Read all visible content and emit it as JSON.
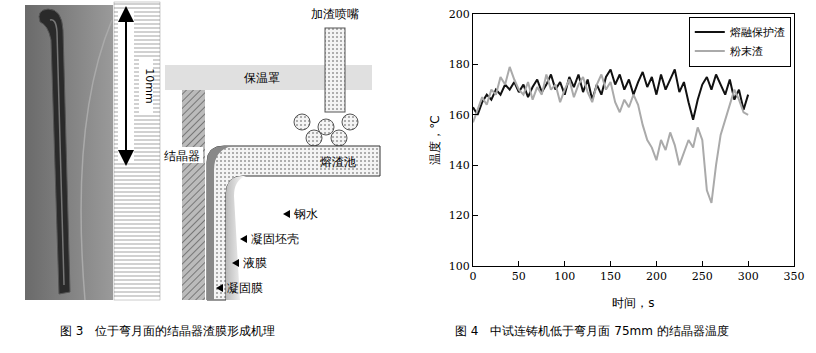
{
  "figure3": {
    "scale_label": "10mm",
    "labels": {
      "nozzle": "加渣喷嘴",
      "cover": "保温罩",
      "mold": "结晶器",
      "slag_pool": "熔渣池",
      "steel": "钢水",
      "shell": "凝固坯壳",
      "liquid_film": "液膜",
      "solid_film": "凝固膜"
    },
    "caption": "图 3　位于弯月面的结晶器渣膜形成机理"
  },
  "chart_data": {
    "type": "line",
    "caption": "图 4　中试连铸机低于弯月面 75mm 的结晶器温度",
    "x_label": "时间，s",
    "y_label": "温度，℃",
    "x": [
      0,
      5,
      10,
      15,
      20,
      25,
      30,
      35,
      40,
      45,
      50,
      55,
      60,
      65,
      70,
      75,
      80,
      85,
      90,
      95,
      100,
      105,
      110,
      115,
      120,
      125,
      130,
      135,
      140,
      145,
      150,
      155,
      160,
      165,
      170,
      175,
      180,
      185,
      190,
      195,
      200,
      205,
      210,
      215,
      220,
      225,
      230,
      235,
      240,
      245,
      250,
      255,
      260,
      265,
      270,
      275,
      280,
      285,
      290,
      295,
      300
    ],
    "series": [
      {
        "name": "熔融保护渣",
        "color": "#111111",
        "values": [
          163,
          160,
          165,
          168,
          166,
          170,
          168,
          172,
          170,
          173,
          169,
          172,
          167,
          171,
          174,
          169,
          172,
          176,
          170,
          173,
          168,
          175,
          171,
          176,
          169,
          174,
          166,
          172,
          168,
          175,
          178,
          172,
          176,
          170,
          174,
          168,
          173,
          177,
          171,
          175,
          168,
          176,
          170,
          174,
          178,
          169,
          173,
          165,
          158,
          166,
          172,
          175,
          170,
          176,
          172,
          168,
          174,
          166,
          170,
          162,
          168
        ]
      },
      {
        "name": "粉末渣",
        "color": "#aaaaaa",
        "values": [
          157,
          162,
          167,
          164,
          170,
          168,
          175,
          172,
          179,
          174,
          170,
          168,
          173,
          166,
          171,
          168,
          176,
          170,
          172,
          165,
          170,
          174,
          167,
          172,
          175,
          169,
          165,
          172,
          176,
          170,
          173,
          165,
          161,
          166,
          163,
          168,
          164,
          156,
          150,
          147,
          142,
          150,
          146,
          153,
          148,
          140,
          145,
          150,
          147,
          155,
          150,
          130,
          125,
          140,
          152,
          158,
          163,
          170,
          166,
          161,
          160
        ]
      }
    ],
    "xlim": [
      0,
      350
    ],
    "xticks": [
      0,
      50,
      100,
      150,
      200,
      250,
      300,
      350
    ],
    "ylim": [
      100,
      200
    ],
    "yticks": [
      100,
      120,
      140,
      160,
      180,
      200
    ],
    "grid": false,
    "legend": "upper right"
  }
}
